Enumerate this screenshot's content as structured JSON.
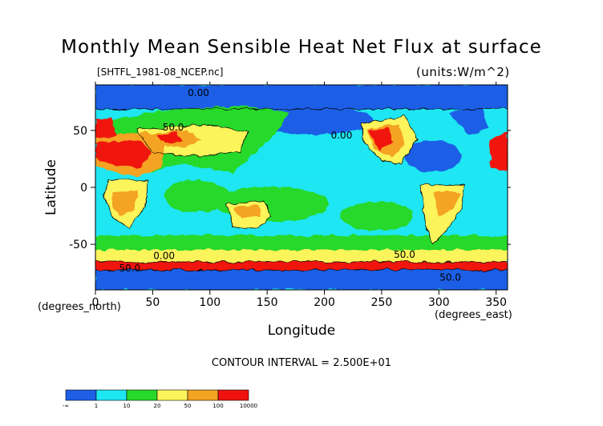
{
  "chart_data": {
    "type": "heatmap",
    "title": "Monthly Mean Sensible Heat Net Flux at surface",
    "subtitle_left": "[SHTFL_1981-08_NCEP.nc]",
    "subtitle_right": "(units:W/m^2)",
    "xlabel": "Longitude",
    "ylabel": "Latitude",
    "x_unit_note": "(degrees_east)",
    "y_unit_note": "(degrees_north)",
    "xlim": [
      0,
      360
    ],
    "ylim": [
      -90,
      90
    ],
    "x_ticks": [
      0,
      50,
      100,
      150,
      200,
      250,
      300,
      350
    ],
    "y_ticks": [
      -50,
      0,
      50
    ],
    "contour_interval_text": "CONTOUR INTERVAL = 2.500E+01",
    "contour_labels": [
      {
        "text": "0.00",
        "lon": 90,
        "lat": 80
      },
      {
        "text": "50.0",
        "lon": 68,
        "lat": 50
      },
      {
        "text": "0.00",
        "lon": 215,
        "lat": 43
      },
      {
        "text": "50.0",
        "lon": 270,
        "lat": -62
      },
      {
        "text": "0.00",
        "lon": 60,
        "lat": -63
      },
      {
        "text": "50.0",
        "lon": 30,
        "lat": -74
      },
      {
        "text": "50.0",
        "lon": 310,
        "lat": -82
      }
    ],
    "colorbar": {
      "colors": [
        "#1e5fe6",
        "#1ee6f2",
        "#27d92a",
        "#fbf45a",
        "#f4a322",
        "#f0120e"
      ],
      "labels": [
        "-∞",
        "1",
        "10",
        "20",
        "50",
        "100",
        "10000"
      ]
    }
  }
}
